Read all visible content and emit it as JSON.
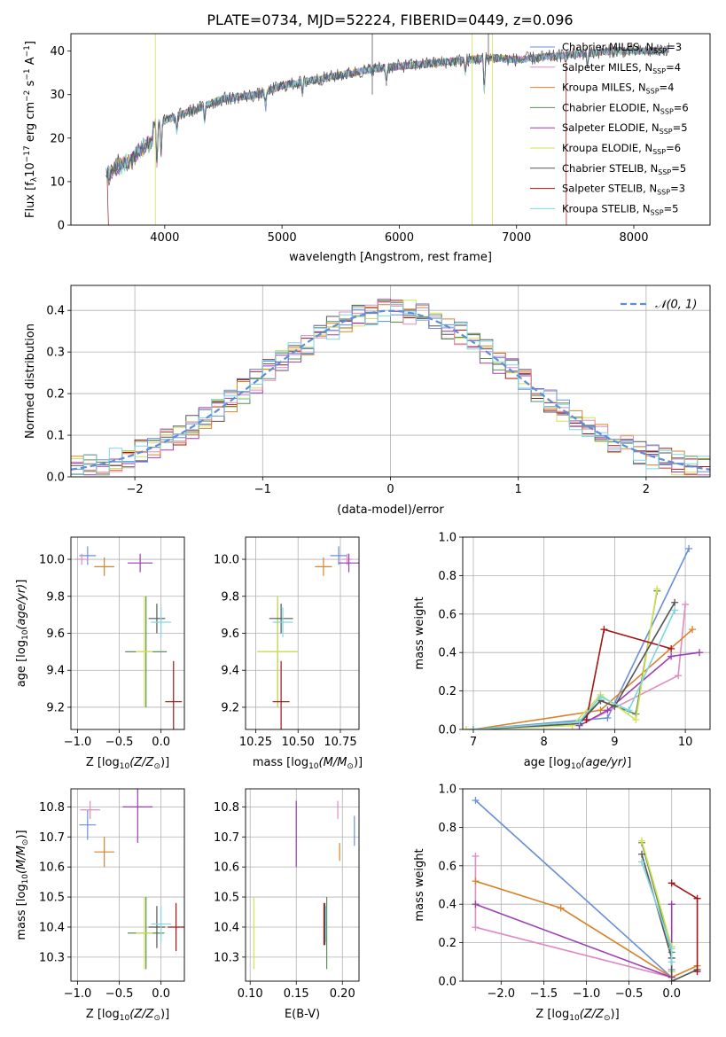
{
  "title": "PLATE=0734, MJD=52224, FIBERID=0449, z=0.096",
  "legend_entries": [
    {
      "label": "Chabrier MILES, N$_{SSP}$=3",
      "text": "Chabrier MILES, N",
      "sub": "SSP",
      "tail": "=3",
      "color": "#6a8fd6"
    },
    {
      "label": "Salpeter MILES",
      "text": "Salpeter MILES, N",
      "sub": "SSP",
      "tail": "=4",
      "color": "#e08bc3"
    },
    {
      "label": "Kroupa MILES",
      "text": "Kroupa MILES, N",
      "sub": "SSP",
      "tail": "=4",
      "color": "#d9822b"
    },
    {
      "label": "Chabrier ELODIE",
      "text": "Chabrier ELODIE, N",
      "sub": "SSP",
      "tail": "=6",
      "color": "#5e8c5a"
    },
    {
      "label": "Salpeter ELODIE",
      "text": "Salpeter ELODIE, N",
      "sub": "SSP",
      "tail": "=5",
      "color": "#9b3fb0"
    },
    {
      "label": "Kroupa ELODIE",
      "text": "Kroupa ELODIE, N",
      "sub": "SSP",
      "tail": "=6",
      "color": "#d4e157"
    },
    {
      "label": "Chabrier STELIB",
      "text": "Chabrier STELIB, N",
      "sub": "SSP",
      "tail": "=5",
      "color": "#555555"
    },
    {
      "label": "Salpeter STELIB",
      "text": "Salpeter STELIB, N",
      "sub": "SSP",
      "tail": "=3",
      "color": "#a31515"
    },
    {
      "label": "Kroupa STELIB",
      "text": "Kroupa STELIB, N",
      "sub": "SSP",
      "tail": "=5",
      "color": "#7fd6e0"
    }
  ],
  "chart_data": [
    {
      "id": "spectrum",
      "type": "line",
      "xlabel": "wavelength [Angstrom, rest frame]",
      "ylabel_main": "Flux [f",
      "ylabel_sub": "λ",
      "ylabel_rest": "10",
      "ylabel_exp": "−17",
      "ylabel_units": " erg cm",
      "ylabel_exp2": "−2",
      "ylabel_s": " s",
      "ylabel_exp3": "−1",
      "ylabel_A": " A",
      "ylabel_exp4": "−1",
      "ylabel_close": "]",
      "xlim": [
        3200,
        8650
      ],
      "ylim": [
        0,
        44
      ],
      "xticks": [
        4000,
        5000,
        6000,
        7000,
        8000
      ],
      "yticks": [
        0,
        10,
        20,
        30,
        40
      ],
      "xtick_labels": [
        "4000",
        "5000",
        "6000",
        "7000",
        "8000"
      ],
      "ytick_labels": [
        "0",
        "10",
        "20",
        "30",
        "40"
      ],
      "anchors": [
        [
          3500,
          15
        ],
        [
          3600,
          17
        ],
        [
          3700,
          18
        ],
        [
          3800,
          21
        ],
        [
          3900,
          23
        ],
        [
          4000,
          24
        ],
        [
          4100,
          25
        ],
        [
          4200,
          26
        ],
        [
          4300,
          27
        ],
        [
          4500,
          29
        ],
        [
          4800,
          30
        ],
        [
          5000,
          32
        ],
        [
          5200,
          33
        ],
        [
          5400,
          34
        ],
        [
          5600,
          35
        ],
        [
          5800,
          36
        ],
        [
          6000,
          36.5
        ],
        [
          6200,
          37
        ],
        [
          6400,
          37.5
        ],
        [
          6600,
          38
        ],
        [
          6800,
          38.5
        ],
        [
          7000,
          38
        ],
        [
          7200,
          38.5
        ],
        [
          7400,
          39
        ],
        [
          7600,
          39.5
        ],
        [
          7800,
          40
        ],
        [
          8000,
          40
        ],
        [
          8200,
          40
        ],
        [
          8300,
          40.5
        ]
      ]
    },
    {
      "id": "histogram",
      "type": "bar",
      "xlabel": "(data-model)/error",
      "ylabel": "Normed distribution",
      "xlim": [
        -2.5,
        2.5
      ],
      "ylim": [
        0,
        0.46
      ],
      "xticks": [
        -2,
        -1,
        0,
        1,
        2
      ],
      "yticks": [
        0.0,
        0.1,
        0.2,
        0.3,
        0.4
      ],
      "xtick_labels": [
        "−2",
        "−1",
        "0",
        "1",
        "2"
      ],
      "ytick_labels": [
        "0.0",
        "0.1",
        "0.2",
        "0.3",
        "0.4"
      ],
      "bin_width": 0.1,
      "gaussian_label": "𝒩(0, 1)",
      "gaussian_color": "#5b8fd9"
    },
    {
      "id": "age_vs_Z",
      "type": "scatter",
      "xlabel_main": "Z [log",
      "xlabel_sub": "10",
      "xlabel_italic": "(Z/Z",
      "xlabel_sun": "⊙",
      "xlabel_close": ")]",
      "ylabel_text": "age  [log",
      "ylabel_sub": "10",
      "ylabel_italic": "(age/yr)",
      "ylabel_close": "]",
      "xlim": [
        -1.08,
        0.28
      ],
      "ylim": [
        9.08,
        10.12
      ],
      "xticks": [
        -1.0,
        -0.5,
        0.0
      ],
      "yticks": [
        9.2,
        9.4,
        9.6,
        9.8,
        10.0
      ],
      "xtick_labels": [
        "−1.0",
        "−0.5",
        "0.0"
      ],
      "ytick_labels": [
        "9.2",
        "9.4",
        "9.6",
        "9.8",
        "10.0"
      ],
      "points": [
        {
          "x": -0.88,
          "y": 10.02,
          "ex": 0.1,
          "ey": 0.05,
          "c": 0
        },
        {
          "x": -0.95,
          "y": 10.0,
          "ex": 0.08,
          "ey": 0.03,
          "c": 1
        },
        {
          "x": -0.68,
          "y": 9.96,
          "ex": 0.12,
          "ey": 0.05,
          "c": 2
        },
        {
          "x": -0.18,
          "y": 9.5,
          "ex": 0.25,
          "ey": 0.3,
          "c": 3
        },
        {
          "x": -0.25,
          "y": 9.98,
          "ex": 0.15,
          "ey": 0.05,
          "c": 4
        },
        {
          "x": -0.2,
          "y": 9.5,
          "ex": 0.1,
          "ey": 0.3,
          "c": 5
        },
        {
          "x": -0.05,
          "y": 9.68,
          "ex": 0.1,
          "ey": 0.08,
          "c": 6
        },
        {
          "x": 0.15,
          "y": 9.23,
          "ex": 0.1,
          "ey": 0.22,
          "c": 7
        },
        {
          "x": 0.0,
          "y": 9.66,
          "ex": 0.12,
          "ey": 0.08,
          "c": 8
        }
      ]
    },
    {
      "id": "age_vs_mass",
      "type": "scatter",
      "xlabel_main": "mass [log",
      "xlabel_sub": "10",
      "xlabel_italic": "(M/M",
      "xlabel_sun": "⊙",
      "xlabel_close": ")]",
      "xlim": [
        10.19,
        10.86
      ],
      "ylim": [
        9.08,
        10.12
      ],
      "xticks": [
        10.25,
        10.5,
        10.75
      ],
      "yticks": [
        9.2,
        9.4,
        9.6,
        9.8,
        10.0
      ],
      "xtick_labels": [
        "10.25",
        "10.50",
        "10.75"
      ],
      "ytick_labels": [
        "9.2",
        "9.4",
        "9.6",
        "9.8",
        "10.0"
      ],
      "points": [
        {
          "x": 10.74,
          "y": 10.02,
          "ex": 0.05,
          "ey": 0.05,
          "c": 0
        },
        {
          "x": 10.79,
          "y": 10.0,
          "ex": 0.03,
          "ey": 0.03,
          "c": 1
        },
        {
          "x": 10.65,
          "y": 9.96,
          "ex": 0.05,
          "ey": 0.05,
          "c": 2
        },
        {
          "x": 10.38,
          "y": 9.5,
          "ex": 0.12,
          "ey": 0.3,
          "c": 3
        },
        {
          "x": 10.8,
          "y": 9.98,
          "ex": 0.06,
          "ey": 0.05,
          "c": 4
        },
        {
          "x": 10.38,
          "y": 9.5,
          "ex": 0.12,
          "ey": 0.3,
          "c": 5
        },
        {
          "x": 10.4,
          "y": 9.68,
          "ex": 0.07,
          "ey": 0.08,
          "c": 6
        },
        {
          "x": 10.4,
          "y": 9.23,
          "ex": 0.05,
          "ey": 0.22,
          "c": 7
        },
        {
          "x": 10.41,
          "y": 9.66,
          "ex": 0.06,
          "ey": 0.08,
          "c": 8
        }
      ]
    },
    {
      "id": "weight_vs_age",
      "type": "line",
      "xlabel_text": "age  [log",
      "xlabel_sub": "10",
      "xlabel_italic": "(age/yr)",
      "xlabel_close": "]",
      "ylabel": "mass weight",
      "xlim": [
        6.85,
        10.35
      ],
      "ylim": [
        0,
        1
      ],
      "xticks": [
        7,
        8,
        9,
        10
      ],
      "yticks": [
        0.0,
        0.2,
        0.4,
        0.6,
        0.8,
        1.0
      ],
      "xtick_labels": [
        "7",
        "8",
        "9",
        "10"
      ],
      "ytick_labels": [
        "0.0",
        "0.2",
        "0.4",
        "0.6",
        "0.8",
        "1.0"
      ],
      "series": [
        {
          "c": 0,
          "x": [
            7.0,
            8.9,
            10.05
          ],
          "y": [
            0.0,
            0.06,
            0.94
          ]
        },
        {
          "c": 1,
          "x": [
            8.5,
            9.9,
            10.0
          ],
          "y": [
            0.02,
            0.28,
            0.65
          ]
        },
        {
          "c": 2,
          "x": [
            7.0,
            8.8,
            10.1
          ],
          "y": [
            0.0,
            0.1,
            0.52
          ]
        },
        {
          "c": 3,
          "x": [
            7.0,
            8.5,
            8.8,
            9.3,
            9.6
          ],
          "y": [
            0.0,
            0.04,
            0.15,
            0.08,
            0.72
          ]
        },
        {
          "c": 4,
          "x": [
            8.5,
            8.9,
            9.8,
            10.2
          ],
          "y": [
            0.02,
            0.1,
            0.38,
            0.4
          ]
        },
        {
          "c": 5,
          "x": [
            6.9,
            8.4,
            8.8,
            9.3,
            9.6
          ],
          "y": [
            0.0,
            0.02,
            0.18,
            0.05,
            0.73
          ]
        },
        {
          "c": 6,
          "x": [
            7.0,
            8.5,
            8.8,
            9.0,
            9.85
          ],
          "y": [
            0.0,
            0.03,
            0.15,
            0.12,
            0.66
          ]
        },
        {
          "c": 7,
          "x": [
            8.6,
            8.85,
            9.8
          ],
          "y": [
            0.05,
            0.52,
            0.42
          ]
        },
        {
          "c": 8,
          "x": [
            7.0,
            8.5,
            8.8,
            9.2,
            9.85
          ],
          "y": [
            0.0,
            0.04,
            0.17,
            0.1,
            0.62
          ]
        }
      ]
    },
    {
      "id": "mass_vs_Z",
      "type": "scatter",
      "xlabel_main": "Z [log",
      "xlabel_sub": "10",
      "xlabel_italic": "(Z/Z",
      "xlabel_sun": "⊙",
      "xlabel_close": ")]",
      "ylabel_text": "mass [log",
      "ylabel_sub": "10",
      "ylabel_italic": "(M/M",
      "ylabel_sun": "⊙",
      "ylabel_close": ")]",
      "xlim": [
        -1.08,
        0.28
      ],
      "ylim": [
        10.22,
        10.86
      ],
      "xticks": [
        -1.0,
        -0.5,
        0.0
      ],
      "yticks": [
        10.3,
        10.4,
        10.5,
        10.6,
        10.7,
        10.8
      ],
      "xtick_labels": [
        "−1.0",
        "−0.5",
        "0.0"
      ],
      "ytick_labels": [
        "10.3",
        "10.4",
        "10.5",
        "10.6",
        "10.7",
        "10.8"
      ],
      "points": [
        {
          "x": -0.88,
          "y": 10.74,
          "ex": 0.1,
          "ey": 0.05,
          "c": 0
        },
        {
          "x": -0.85,
          "y": 10.79,
          "ex": 0.12,
          "ey": 0.03,
          "c": 1
        },
        {
          "x": -0.68,
          "y": 10.65,
          "ex": 0.12,
          "ey": 0.05,
          "c": 2
        },
        {
          "x": -0.18,
          "y": 10.38,
          "ex": 0.22,
          "ey": 0.12,
          "c": 3
        },
        {
          "x": -0.28,
          "y": 10.8,
          "ex": 0.18,
          "ey": 0.12,
          "c": 4
        },
        {
          "x": -0.2,
          "y": 10.38,
          "ex": 0.1,
          "ey": 0.12,
          "c": 5
        },
        {
          "x": -0.05,
          "y": 10.4,
          "ex": 0.1,
          "ey": 0.07,
          "c": 6
        },
        {
          "x": 0.18,
          "y": 10.4,
          "ex": 0.1,
          "ey": 0.08,
          "c": 7
        },
        {
          "x": 0.0,
          "y": 10.41,
          "ex": 0.12,
          "ey": 0.06,
          "c": 8
        }
      ]
    },
    {
      "id": "mass_vs_EBV",
      "type": "scatter",
      "xlabel": "E(B-V)",
      "xlim": [
        0.095,
        0.218
      ],
      "ylim": [
        10.22,
        10.86
      ],
      "xticks": [
        0.1,
        0.15,
        0.2
      ],
      "yticks": [
        10.3,
        10.4,
        10.5,
        10.6,
        10.7,
        10.8
      ],
      "xtick_labels": [
        "0.10",
        "0.15",
        "0.20"
      ],
      "ytick_labels": [
        "10.3",
        "10.4",
        "10.5",
        "10.6",
        "10.7",
        "10.8"
      ],
      "points": [
        {
          "x": 0.213,
          "y": 10.72,
          "ex": 0,
          "ey": 0.05,
          "c": 0
        },
        {
          "x": 0.195,
          "y": 10.79,
          "ex": 0,
          "ey": 0.03,
          "c": 1
        },
        {
          "x": 0.197,
          "y": 10.65,
          "ex": 0,
          "ey": 0.03,
          "c": 2
        },
        {
          "x": 0.183,
          "y": 10.38,
          "ex": 0,
          "ey": 0.12,
          "c": 3
        },
        {
          "x": 0.15,
          "y": 10.71,
          "ex": 0,
          "ey": 0.11,
          "c": 4
        },
        {
          "x": 0.104,
          "y": 10.38,
          "ex": 0,
          "ey": 0.12,
          "c": 5
        },
        {
          "x": 0.181,
          "y": 10.41,
          "ex": 0,
          "ey": 0.07,
          "c": 6
        },
        {
          "x": 0.18,
          "y": 10.41,
          "ex": 0,
          "ey": 0.07,
          "c": 7
        },
        {
          "x": 0.182,
          "y": 10.41,
          "ex": 0,
          "ey": 0.06,
          "c": 8
        }
      ]
    },
    {
      "id": "weight_vs_Z",
      "type": "line",
      "xlabel_main": "Z [log",
      "xlabel_sub": "10",
      "xlabel_italic": "(Z/Z",
      "xlabel_sun": "⊙",
      "xlabel_close": ")]",
      "ylabel": "mass weight",
      "xlim": [
        -2.45,
        0.45
      ],
      "ylim": [
        0,
        1
      ],
      "xticks": [
        -2.0,
        -1.5,
        -1.0,
        -0.5,
        0.0
      ],
      "yticks": [
        0.0,
        0.2,
        0.4,
        0.6,
        0.8,
        1.0
      ],
      "xtick_labels": [
        "−2.0",
        "−1.5",
        "−1.0",
        "−0.5",
        "0.0"
      ],
      "ytick_labels": [
        "0.0",
        "0.2",
        "0.4",
        "0.6",
        "0.8",
        "1.0"
      ],
      "series": [
        {
          "c": 0,
          "x": [
            -2.3,
            0.0,
            0.0
          ],
          "y": [
            0.94,
            0.02,
            0.06
          ]
        },
        {
          "c": 1,
          "x": [
            -2.3,
            -2.3,
            0.0
          ],
          "y": [
            0.65,
            0.28,
            0.02
          ]
        },
        {
          "c": 2,
          "x": [
            -2.3,
            -1.3,
            0.0,
            0.3
          ],
          "y": [
            0.52,
            0.38,
            0.02,
            0.08
          ]
        },
        {
          "c": 3,
          "x": [
            -0.35,
            0.0,
            0.0
          ],
          "y": [
            0.72,
            0.15,
            0.05
          ]
        },
        {
          "c": 4,
          "x": [
            -2.3,
            0.0,
            0.0
          ],
          "y": [
            0.4,
            0.02,
            0.4
          ]
        },
        {
          "c": 5,
          "x": [
            -0.35,
            0.0,
            0.0
          ],
          "y": [
            0.73,
            0.18,
            0.05
          ]
        },
        {
          "c": 6,
          "x": [
            -0.35,
            0.0,
            0.0,
            0.3
          ],
          "y": [
            0.66,
            0.12,
            0.0,
            0.06
          ]
        },
        {
          "c": 7,
          "x": [
            0.0,
            0.3,
            0.3
          ],
          "y": [
            0.51,
            0.43,
            0.05
          ]
        },
        {
          "c": 8,
          "x": [
            -0.35,
            0.0,
            0.0
          ],
          "y": [
            0.62,
            0.17,
            0.1
          ]
        }
      ]
    }
  ]
}
